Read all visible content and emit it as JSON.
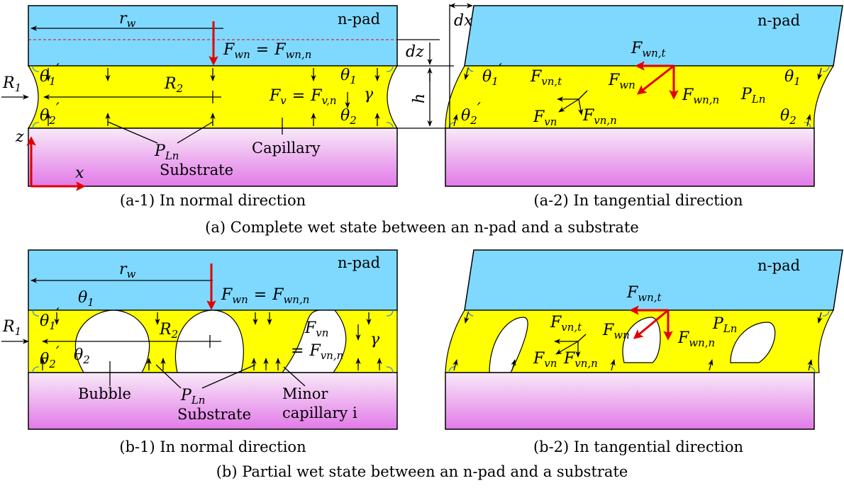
{
  "colors": {
    "pad": "#7fd9ff",
    "liquid": "#ffff00",
    "substrate_top": "#f8eaf8",
    "substrate_bottom": "#e27ae8",
    "force": "#e00000"
  },
  "panel_a1": {
    "pad_label": "n-pad",
    "rw": "r",
    "rw_sub": "w",
    "fwn": "F",
    "fwn_sub": "wn",
    "eq": "=",
    "fwnn": "F",
    "fwnn_sub": "wn,n",
    "dz": "dz",
    "h": "h",
    "R1": "R",
    "R1_sub": "1",
    "R2": "R",
    "R2_sub": "2",
    "theta1p": "θ",
    "theta1p_sub": "1",
    "prime": "′",
    "theta2p": "θ",
    "theta2p_sub": "2",
    "theta1": "θ",
    "theta1_sub": "1",
    "theta2": "θ",
    "theta2_sub": "2",
    "gamma": "γ",
    "fv": "F",
    "fv_sub": "v",
    "fvn": "F",
    "fvn_sub": "v,n",
    "pln": "P",
    "pln_sub": "Ln",
    "capillary": "Capillary",
    "substrate": "Substrate",
    "z": "z",
    "x": "x",
    "caption": "(a-1) In normal direction"
  },
  "panel_a2": {
    "pad_label": "n-pad",
    "dx": "dx",
    "fwnt": "F",
    "fwnt_sub": "wn,t",
    "fwn": "F",
    "fwn_sub": "wn",
    "fwnn": "F",
    "fwnn_sub": "wn,n",
    "fvnt": "F",
    "fvnt_sub": "vn,t",
    "fvn": "F",
    "fvn_sub": "vn",
    "fvnn": "F",
    "fvnn_sub": "vn,n",
    "pln": "P",
    "pln_sub": "Ln",
    "theta1p": "θ",
    "theta1p_sub": "1",
    "prime": "′",
    "theta2p": "θ",
    "theta2p_sub": "2",
    "theta1": "θ",
    "theta1_sub": "1",
    "theta2": "θ",
    "theta2_sub": "2",
    "caption": "(a-2) In tangential direction"
  },
  "caption_a": "(a) Complete wet state between an n-pad and a substrate",
  "panel_b1": {
    "pad_label": "n-pad",
    "rw": "r",
    "rw_sub": "w",
    "fwn": "F",
    "fwn_sub": "wn",
    "eq": "=",
    "fwnn": "F",
    "fwnn_sub": "wn,n",
    "theta1": "θ",
    "theta1_sub": "1",
    "theta1p": "θ",
    "theta1p_sub": "1",
    "prime": "′",
    "theta2p": "θ",
    "theta2p_sub": "2",
    "theta2": "θ",
    "theta2_sub": "2",
    "R1": "R",
    "R1_sub": "1",
    "R2": "R",
    "R2_sub": "2",
    "fvn": "F",
    "fvn_sub": "vn",
    "fvnn": "F",
    "fvnn_sub": "vn,n",
    "gamma": "γ",
    "pln": "P",
    "pln_sub": "Ln",
    "bubble": "Bubble",
    "substrate": "Substrate",
    "minor1": "Minor",
    "minor2": "capillary i",
    "caption": "(b-1) In normal direction"
  },
  "panel_b2": {
    "pad_label": "n-pad",
    "fwnt": "F",
    "fwnt_sub": "wn,t",
    "fwn": "F",
    "fwn_sub": "wn",
    "fwnn": "F",
    "fwnn_sub": "wn,n",
    "fvnt": "F",
    "fvnt_sub": "vn,t",
    "fvn": "F",
    "fvn_sub": "vn",
    "fvnn": "F",
    "fvnn_sub": "vn,n",
    "pln": "P",
    "pln_sub": "Ln",
    "caption": "(b-2) In tangential direction"
  },
  "caption_b": "(b) Partial wet state between  an n-pad and a substrate"
}
